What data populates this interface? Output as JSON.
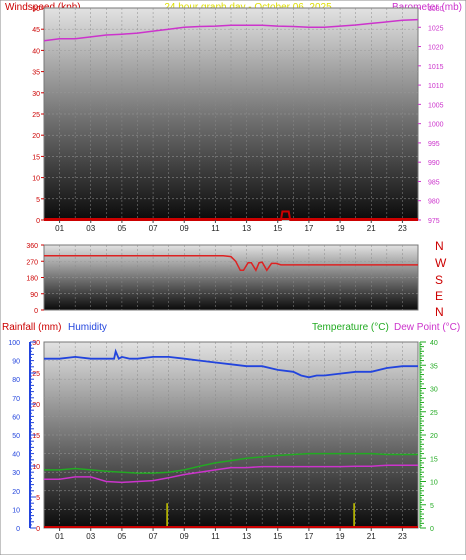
{
  "header": {
    "left_title": "Windspeed (kph)",
    "center_title": "24 hour graph day - October 06, 2025",
    "right_title": "Barometer (mb)"
  },
  "colors": {
    "windspeed": "#cc0000",
    "barometer": "#cc33cc",
    "direction": "#dd2222",
    "rainfall": "#cc0000",
    "humidity": "#2244dd",
    "temperature": "#22aa22",
    "dewpoint": "#cc33cc",
    "center_title": "#dddd00",
    "compass": "#cc0000",
    "rain_bars": "#cccc00",
    "baseline": "#cc0000"
  },
  "compass": [
    "N",
    "W",
    "S",
    "E",
    "N"
  ],
  "panel3": {
    "rainfall_label": "Rainfall (mm)",
    "humidity_label": "Humidity",
    "temperature_label": "Temperature (°C)",
    "dewpoint_label": "Dew Point (°C)"
  },
  "chart_data": [
    {
      "type": "line",
      "series": [
        {
          "name": "Barometer (mb)",
          "axis": "right",
          "x": [
            0,
            1,
            2,
            3,
            4,
            5,
            6,
            7,
            8,
            9,
            10,
            11,
            12,
            13,
            14,
            15,
            16,
            17,
            18,
            19,
            20,
            21,
            22,
            23,
            24
          ],
          "values": [
            1021.5,
            1022,
            1022,
            1022.5,
            1023,
            1023.2,
            1023.5,
            1024,
            1024.5,
            1025,
            1025.2,
            1025.3,
            1025.5,
            1025.5,
            1025.5,
            1025.3,
            1025.2,
            1025,
            1025,
            1025.3,
            1025.6,
            1026,
            1026.4,
            1026.8,
            1027
          ]
        },
        {
          "name": "Windspeed (kph)",
          "axis": "left",
          "x": [
            0,
            15.2,
            15.3,
            15.7,
            15.8,
            24
          ],
          "values": [
            0,
            0,
            2,
            2,
            0,
            0
          ]
        }
      ],
      "xlabels": [
        "01",
        "03",
        "05",
        "07",
        "09",
        "11",
        "13",
        "15",
        "17",
        "19",
        "21",
        "23"
      ],
      "ylim_left": [
        0,
        50
      ],
      "ylim_right": [
        975,
        1030
      ],
      "yticks_left": [
        0,
        5,
        10,
        15,
        20,
        25,
        30,
        35,
        40,
        45,
        50
      ],
      "yticks_right": [
        975,
        980,
        985,
        990,
        995,
        1000,
        1005,
        1010,
        1015,
        1020,
        1025,
        1030
      ]
    },
    {
      "type": "line",
      "series": [
        {
          "name": "Wind direction",
          "x": [
            0,
            11.5,
            11.8,
            12,
            12.3,
            12.6,
            12.8,
            13.1,
            13.3,
            13.6,
            13.8,
            14,
            14.3,
            14.6,
            14.9,
            15.2,
            15.5,
            24
          ],
          "values": [
            300,
            300,
            298,
            296,
            270,
            220,
            220,
            262,
            262,
            220,
            262,
            265,
            220,
            258,
            258,
            250,
            250,
            250
          ]
        }
      ],
      "ylim": [
        0,
        360
      ],
      "yticks": [
        0,
        90,
        180,
        270,
        360
      ],
      "yticklabels": [
        "0",
        "90",
        "180",
        "270",
        "360"
      ]
    },
    {
      "type": "line",
      "series": [
        {
          "name": "Humidity",
          "axis": "humidity",
          "x": [
            0,
            1,
            2,
            3,
            4,
            4.5,
            4.6,
            4.8,
            5,
            5.5,
            6,
            7,
            8,
            9,
            10,
            11,
            12,
            13,
            14,
            15,
            16,
            16.5,
            17,
            17.5,
            18,
            19,
            20,
            21,
            22,
            23,
            24
          ],
          "values": [
            91,
            91,
            92,
            91,
            91,
            91,
            95,
            91,
            92,
            91,
            91,
            92,
            92,
            91,
            90,
            89,
            88,
            87,
            87,
            85,
            84,
            82,
            81,
            82,
            82,
            83,
            84,
            84,
            86,
            87,
            87
          ]
        },
        {
          "name": "Temperature (°C)",
          "axis": "temp",
          "x": [
            0,
            1,
            2,
            3,
            4,
            5,
            6,
            7,
            8,
            9,
            10,
            11,
            12,
            13,
            14,
            15,
            16,
            17,
            18,
            19,
            20,
            21,
            22,
            23,
            24
          ],
          "values": [
            12.5,
            12.5,
            12.8,
            12.5,
            12.2,
            12,
            11.8,
            11.8,
            12,
            12.5,
            13.3,
            14,
            14.5,
            15,
            15.3,
            15.6,
            15.8,
            16,
            16,
            16,
            16,
            16,
            15.8,
            15.8,
            15.8
          ]
        },
        {
          "name": "Dew Point (°C)",
          "axis": "temp",
          "x": [
            0,
            1,
            2,
            3,
            4,
            5,
            6,
            7,
            8,
            9,
            10,
            11,
            12,
            13,
            14,
            15,
            16,
            17,
            18,
            19,
            20,
            21,
            22,
            23,
            24
          ],
          "values": [
            10.5,
            10.5,
            11,
            11,
            10,
            9.8,
            10,
            10.2,
            10.8,
            11.5,
            12,
            12.5,
            13,
            13,
            13.2,
            13.2,
            13.2,
            13.2,
            13.2,
            13.2,
            13.3,
            13.3,
            13.5,
            13.5,
            13.5
          ]
        },
        {
          "name": "Rainfall (mm)",
          "axis": "rain",
          "type": "bar",
          "x": [
            7.9,
            19.9
          ],
          "values": [
            4,
            4
          ]
        }
      ],
      "xlabels": [
        "01",
        "03",
        "05",
        "07",
        "09",
        "11",
        "13",
        "15",
        "17",
        "19",
        "21",
        "23"
      ],
      "humidity_ylim": [
        0,
        100
      ],
      "humidity_yticks": [
        0,
        10,
        20,
        30,
        40,
        50,
        60,
        70,
        80,
        90,
        100
      ],
      "rain_ylim": [
        0,
        30
      ],
      "rain_yticks": [
        0,
        5,
        10,
        15,
        20,
        25,
        30
      ],
      "temp_ylim": [
        0,
        40
      ],
      "temp_yticks": [
        0,
        5,
        10,
        15,
        20,
        25,
        30,
        35,
        40
      ]
    }
  ]
}
